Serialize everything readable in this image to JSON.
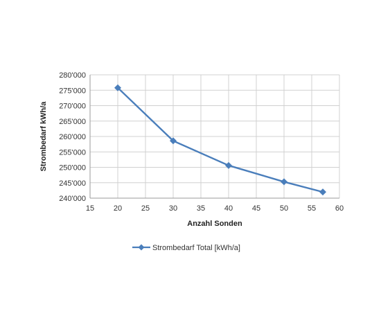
{
  "chart_data": {
    "type": "line",
    "title": "",
    "xlabel": "Anzahl Sonden",
    "ylabel": "Strombedarf kWh/a",
    "xlim": [
      15,
      60
    ],
    "ylim": [
      240000,
      280000
    ],
    "x_ticks": [
      "15",
      "20",
      "25",
      "30",
      "35",
      "40",
      "45",
      "50",
      "55",
      "60"
    ],
    "x_tick_values": [
      15,
      20,
      25,
      30,
      35,
      40,
      45,
      50,
      55,
      60
    ],
    "y_ticks": [
      "240'000",
      "245'000",
      "250'000",
      "255'000",
      "260'000",
      "265'000",
      "270'000",
      "275'000",
      "280'000"
    ],
    "y_tick_values": [
      240000,
      245000,
      250000,
      255000,
      260000,
      265000,
      270000,
      275000,
      280000
    ],
    "grid": true,
    "legend_position": "bottom",
    "series": [
      {
        "name": "Strombedarf Total [kWh/a]",
        "color": "#4a7ebb",
        "marker": "diamond",
        "x": [
          20,
          30,
          40,
          50,
          57
        ],
        "y": [
          275800,
          258600,
          250600,
          245300,
          242000
        ]
      }
    ]
  }
}
